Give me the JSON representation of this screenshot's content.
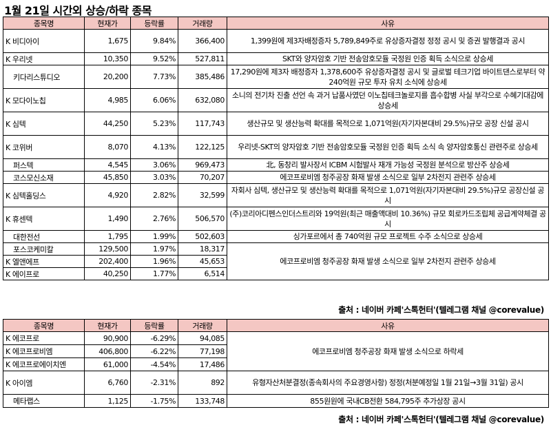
{
  "title": "1월 21일   시간외 상승/하락 종목",
  "headers": {
    "name": "종목명",
    "price": "현재가",
    "change": "등락률",
    "volume": "거래량",
    "reason": "사유"
  },
  "source": "출처 : 네이버 카페'스톡헌터'(텔레그램 채널 @corevalue)",
  "rise": [
    {
      "name": "K 비디아이",
      "price": "1,675",
      "change": "9.84%",
      "volume": "366,400",
      "reason": "1,399원에 제3자배정증자 5,789,849주로 유상증자결정 정정 공시 및 증권 발행결과 공시"
    },
    {
      "name": "K 우리넷",
      "price": "10,350",
      "change": "9.52%",
      "volume": "527,811",
      "reason": "SKT와 양자암호 기반 전송암호모듈 국정원 인증 획득 소식으로 상승세"
    },
    {
      "name": "키다리스튜디오",
      "price": "20,200",
      "change": "7.73%",
      "volume": "385,486",
      "reason": "17,290원에 제3자 배정증자 1,378,600주 유상증자결정 공시 및 글로벌 테크기업 바이트댄스로부터 약 240억원 규모 투자 유치 소식에 상승세"
    },
    {
      "name": "K 모다이노칩",
      "price": "4,985",
      "change": "6.06%",
      "volume": "632,080",
      "reason": "소니의 전기차 진출 선언 속 과거 납품사였던 이노칩테크놀로지를 흡수합병 사실 부각으로 수혜기대감에 상승세"
    },
    {
      "name": "K 심텍",
      "price": "44,250",
      "change": "5.23%",
      "volume": "117,743",
      "reason": "생산규모 및 생산능력 확대를 목적으로 1,071억원(자기자본대비 29.5%)규모 공장 신설 공시"
    },
    {
      "name": "K 코위버",
      "price": "8,070",
      "change": "4.13%",
      "volume": "122,125",
      "reason": "우리넷-SKT의 양자암호 기반 전송암호모듈 국정원 인증 획득 소식 속 양자암호통신 관련주로 상승세"
    },
    {
      "name": "퍼스텍",
      "price": "4,545",
      "change": "3.06%",
      "volume": "969,473",
      "reason": "北, 동창리 발사장서 ICBM 시험발사 재개 가능성 국정원 분석으로 방산주 상승세"
    },
    {
      "name": "코스모신소재",
      "price": "45,850",
      "change": "3.03%",
      "volume": "70,207",
      "reason": "에코프로비엠 청주공장 화재 발생 소식으로 일부 2차전지 관련주 상승세"
    },
    {
      "name": "K 심텍홀딩스",
      "price": "4,920",
      "change": "2.82%",
      "volume": "32,599",
      "reason": "자회사 심텍, 생산규모 및 생산능력 확대를 목적으로 1,071억원(자기자본대비 29.5%)규모 공장신설 공시"
    },
    {
      "name": "K 휴센텍",
      "price": "1,490",
      "change": "2.76%",
      "volume": "506,570",
      "reason": "(주)코리아디펜스인더스트리와 19억원(최근 매출액대비 10.36%) 규모 회로카드조립체 공급계약체결 공시"
    },
    {
      "name": "대한전선",
      "price": "1,795",
      "change": "1.99%",
      "volume": "502,603",
      "reason": "싱가포르에서 총 740억원 규모 프로젝트 수주 소식으로 상승세"
    },
    {
      "name": "포스코케미칼",
      "price": "129,500",
      "change": "1.97%",
      "volume": "18,317"
    },
    {
      "name": "K 엘앤에프",
      "price": "202,400",
      "change": "1.96%",
      "volume": "45,653"
    },
    {
      "name": "K 에이프로",
      "price": "40,250",
      "change": "1.77%",
      "volume": "6,514"
    }
  ],
  "rise_group_reason": "에코프로비엠 청주공장 화재 발생 소식으로 일부 2차전지 관련주 상승세",
  "fall": [
    {
      "name": "K 에코프로",
      "price": "90,900",
      "change": "-6.29%",
      "volume": "94,085"
    },
    {
      "name": "K 에코프로비엠",
      "price": "406,800",
      "change": "-6.22%",
      "volume": "77,198"
    },
    {
      "name": "K 에코프로에이치엔",
      "price": "61,000",
      "change": "-4.54%",
      "volume": "17,486"
    },
    {
      "name": "K 아이엠",
      "price": "6,760",
      "change": "-2.31%",
      "volume": "892",
      "reason": "유형자산처분결정(종속회사의 주요경영사항) 정정(처분예정일 1월 21일→3월 31일) 공시"
    },
    {
      "name": "메타랩스",
      "price": "1,125",
      "change": "-1.75%",
      "volume": "133,748",
      "reason": "855원원에 국내CB전환 584,795주 추가상장 공시"
    }
  ],
  "fall_group_reason": "에코프로비엠 청주공장 화재 발생 소식으로 하락세"
}
